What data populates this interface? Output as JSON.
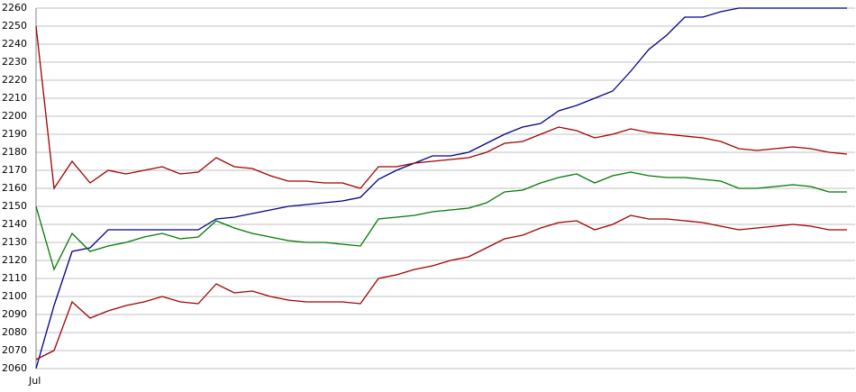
{
  "chart_data": {
    "type": "line",
    "categories": [
      "Jul",
      null,
      null,
      null,
      null,
      null,
      null,
      null,
      null,
      null,
      null,
      null,
      null,
      null,
      null,
      null,
      null,
      null,
      null,
      null,
      null,
      null,
      null,
      null,
      null,
      null,
      null,
      null,
      null,
      null,
      null,
      null,
      null,
      null,
      null,
      null,
      null,
      null,
      null,
      null,
      null,
      null,
      null,
      null,
      null,
      null
    ],
    "ylim": [
      2060,
      2260
    ],
    "yticks": [
      2060,
      2070,
      2080,
      2090,
      2100,
      2110,
      2120,
      2130,
      2140,
      2150,
      2160,
      2170,
      2180,
      2190,
      2200,
      2210,
      2220,
      2230,
      2240,
      2250,
      2260
    ],
    "grid": true,
    "series": [
      {
        "color": "#00008b",
        "values": [
          2060,
          2095,
          2125,
          2127,
          2137,
          2137,
          2137,
          2137,
          2137,
          2137,
          2143,
          2144,
          2146,
          2148,
          2150,
          2151,
          2152,
          2153,
          2155,
          2165,
          2170,
          2174,
          2178,
          2178,
          2180,
          2185,
          2190,
          2194,
          2196,
          2203,
          2206,
          2210,
          2214,
          2225,
          2237,
          2245,
          2255,
          2255,
          2258,
          2260,
          2260,
          2260,
          2260,
          2260,
          2260,
          2260
        ]
      },
      {
        "color": "#a00000",
        "values": [
          2250,
          2160,
          2175,
          2163,
          2170,
          2168,
          2170,
          2172,
          2168,
          2169,
          2177,
          2172,
          2171,
          2167,
          2164,
          2164,
          2163,
          2163,
          2160,
          2172,
          2172,
          2174,
          2175,
          2176,
          2177,
          2180,
          2185,
          2186,
          2190,
          2194,
          2192,
          2188,
          2190,
          2193,
          2191,
          2190,
          2189,
          2188,
          2186,
          2182,
          2181,
          2182,
          2183,
          2182,
          2180,
          2179
        ]
      },
      {
        "color": "#007800",
        "values": [
          2150,
          2115,
          2135,
          2125,
          2128,
          2130,
          2133,
          2135,
          2132,
          2133,
          2142,
          2138,
          2135,
          2133,
          2131,
          2130,
          2130,
          2129,
          2128,
          2143,
          2144,
          2145,
          2147,
          2148,
          2149,
          2152,
          2158,
          2159,
          2163,
          2166,
          2168,
          2163,
          2167,
          2169,
          2167,
          2166,
          2166,
          2165,
          2164,
          2160,
          2160,
          2161,
          2162,
          2161,
          2158,
          2158
        ]
      },
      {
        "color": "#a00000",
        "values": [
          2065,
          2070,
          2097,
          2088,
          2092,
          2095,
          2097,
          2100,
          2097,
          2096,
          2107,
          2102,
          2103,
          2100,
          2098,
          2097,
          2097,
          2097,
          2096,
          2110,
          2112,
          2115,
          2117,
          2120,
          2122,
          2127,
          2132,
          2134,
          2138,
          2141,
          2142,
          2137,
          2140,
          2145,
          2143,
          2143,
          2142,
          2141,
          2139,
          2137,
          2138,
          2139,
          2140,
          2139,
          2137,
          2137
        ]
      }
    ]
  }
}
